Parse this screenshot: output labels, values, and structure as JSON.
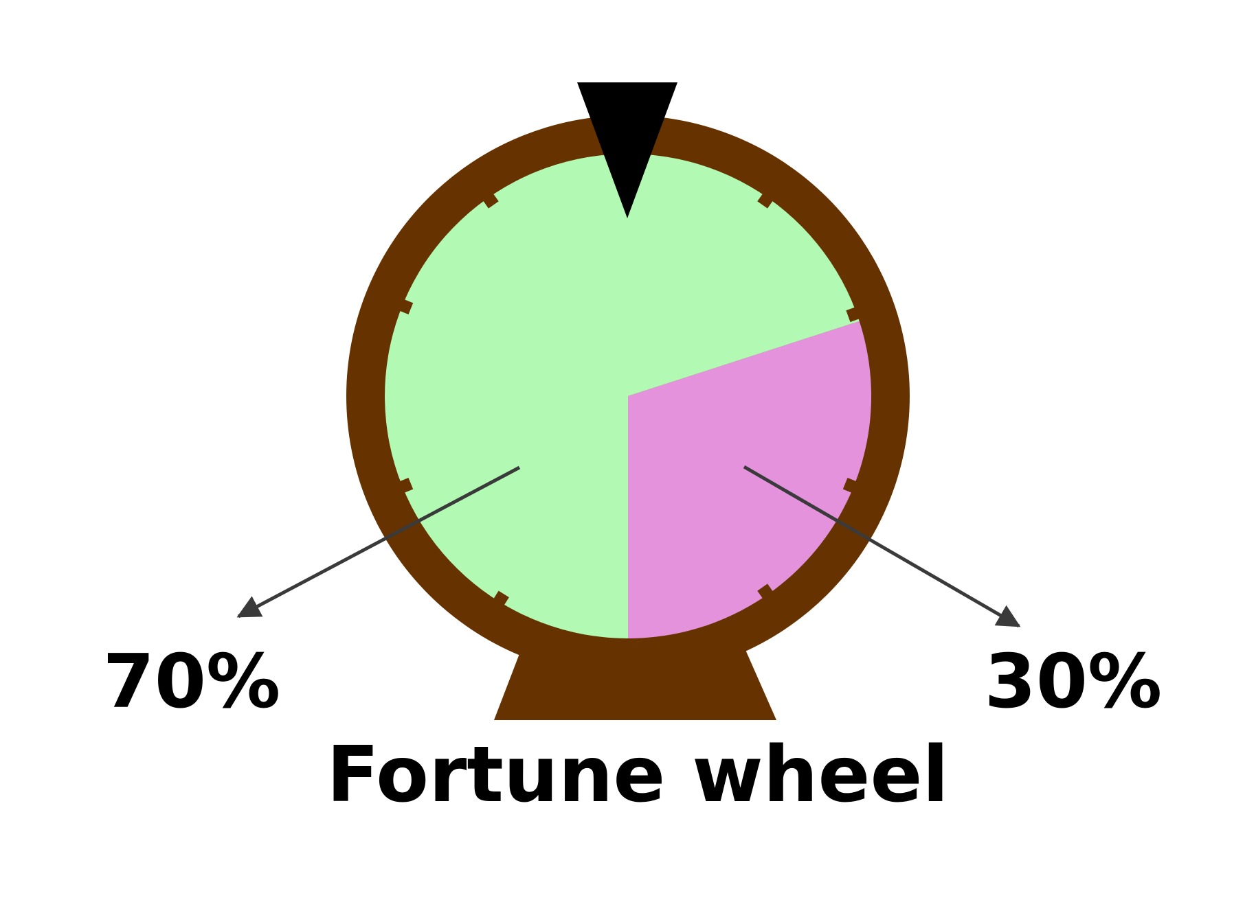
{
  "title": "Fortune wheel",
  "segments": [
    {
      "label": "70%",
      "share": 0.7,
      "color": "#b2f9b3"
    },
    {
      "label": "30%",
      "share": 0.3,
      "color": "#e592dd"
    }
  ],
  "colors": {
    "rim": "#663300",
    "stand": "#663300",
    "pointer": "#000000",
    "arrow": "#3a3a3a"
  },
  "icons": {
    "pointer": "pointer-triangle-icon"
  }
}
